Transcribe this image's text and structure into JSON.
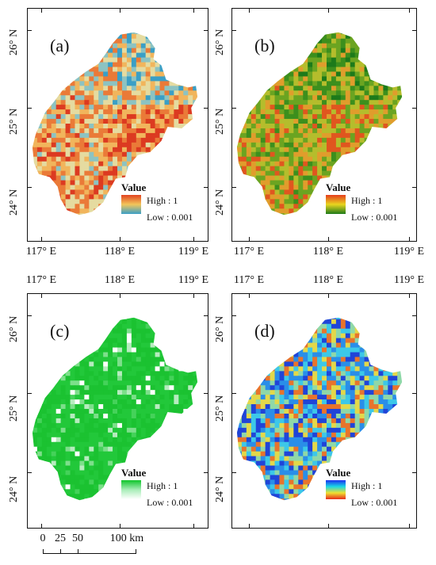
{
  "panels": [
    {
      "id": "a",
      "label": "(a)",
      "legend": {
        "title": "Value",
        "high": "High : 1",
        "low": "Low : 0.001",
        "colors": [
          "#e2431f",
          "#f2c65a",
          "#3a9fc6"
        ]
      },
      "palette": [
        "#3a9fc6",
        "#8cc3c2",
        "#e5dba0",
        "#f1b55c",
        "#ea7a38",
        "#dc3a21"
      ]
    },
    {
      "id": "b",
      "label": "(b)",
      "legend": {
        "title": "Value",
        "high": "High : 1",
        "low": "Low : 0.001",
        "colors": [
          "#e63c1c",
          "#e8d51f",
          "#1d7a1a"
        ]
      },
      "palette": [
        "#1d7a1a",
        "#3c8f1d",
        "#6ba421",
        "#b5bd2c",
        "#e09d2c",
        "#e0561f"
      ]
    },
    {
      "id": "c",
      "label": "(c)",
      "legend": {
        "title": "Value",
        "high": "High : 1",
        "low": "Low : 0.001",
        "colors": [
          "#10c52b",
          "#a8edb8",
          "#ffffff"
        ]
      },
      "palette": [
        "#1bc231",
        "#22c83a",
        "#45d25a",
        "#7ddf8b",
        "#b7ecbf",
        "#ffffff"
      ]
    },
    {
      "id": "d",
      "label": "(d)",
      "legend": {
        "title": "Value",
        "high": "High : 1",
        "low": "Low : 0.001",
        "colors": [
          "#1a2ef0",
          "#19d7e6",
          "#f0e030",
          "#e82a1c"
        ]
      },
      "palette": [
        "#2044d8",
        "#2a8ee8",
        "#3cc8e8",
        "#8fd8a8",
        "#e3d84a",
        "#e8742c"
      ]
    }
  ],
  "axes": {
    "lon_labels": [
      "117° E",
      "118° E",
      "119° E"
    ],
    "lat_labels": [
      "26° N",
      "25° N",
      "24° N"
    ]
  },
  "scalebar": {
    "labels": [
      "0",
      "25",
      "50",
      "100 km"
    ]
  }
}
